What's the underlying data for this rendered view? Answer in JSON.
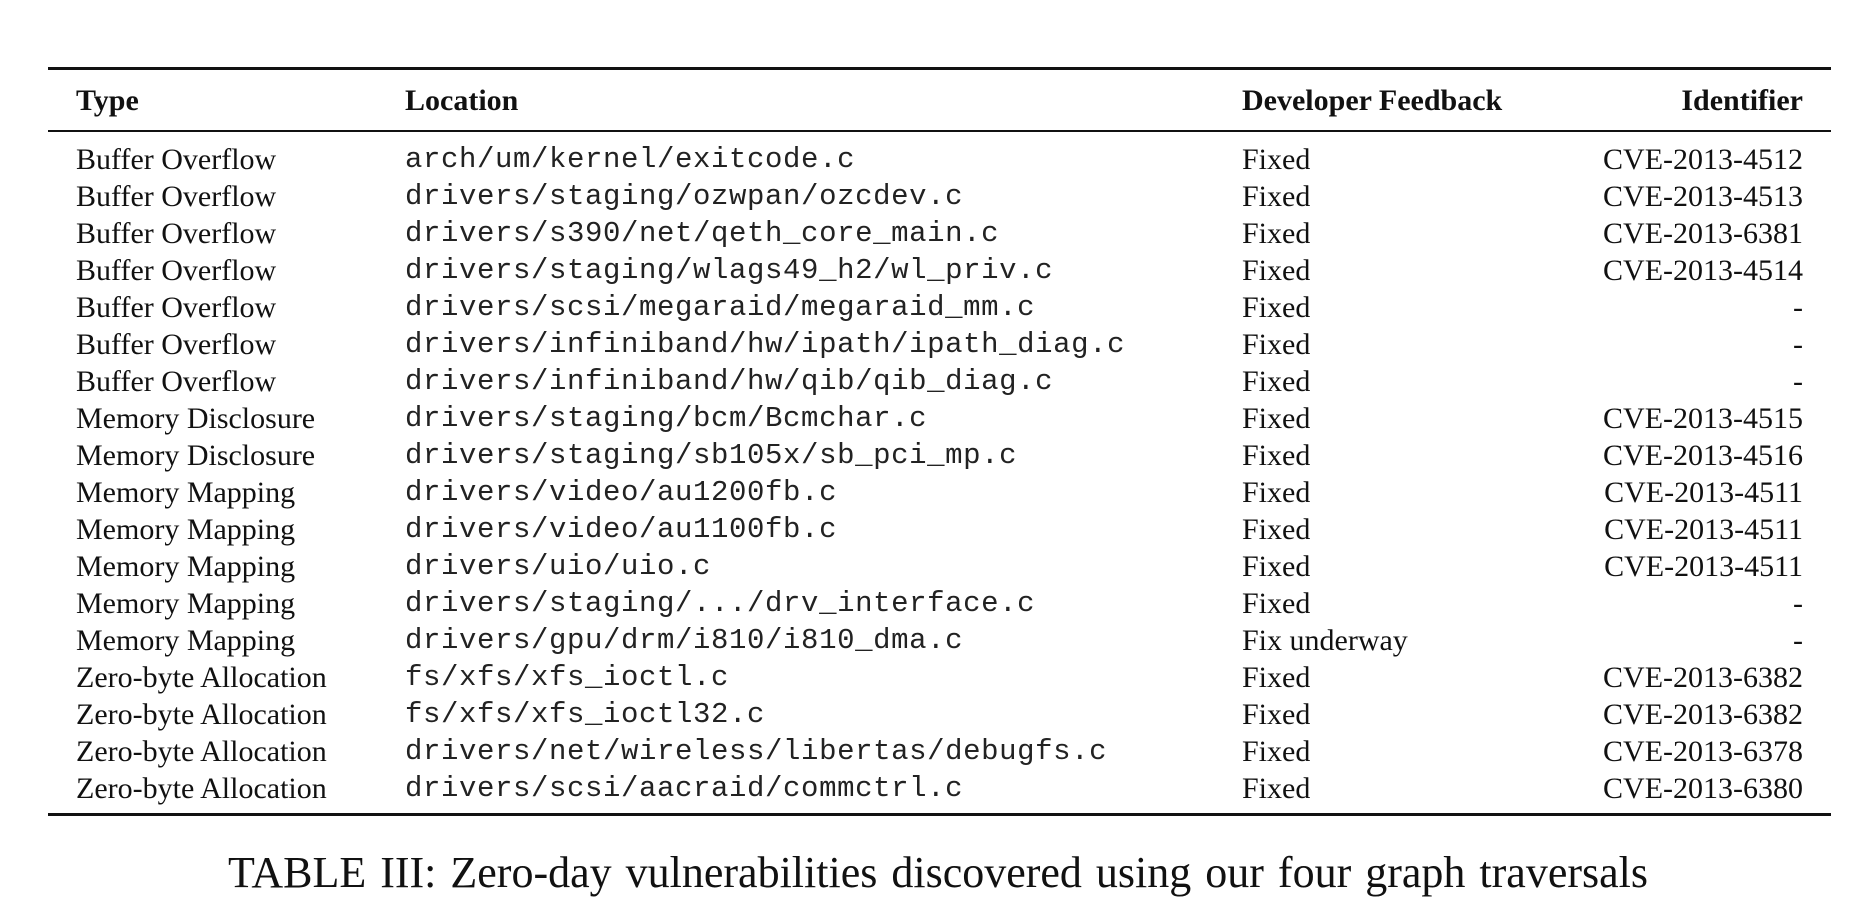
{
  "table": {
    "headers": {
      "type": "Type",
      "location": "Location",
      "feedback": "Developer Feedback",
      "identifier": "Identifier"
    },
    "rows": [
      {
        "type": "Buffer Overflow",
        "location": "arch/um/kernel/exitcode.c",
        "feedback": "Fixed",
        "identifier": "CVE-2013-4512"
      },
      {
        "type": "Buffer Overflow",
        "location": "drivers/staging/ozwpan/ozcdev.c",
        "feedback": "Fixed",
        "identifier": "CVE-2013-4513"
      },
      {
        "type": "Buffer Overflow",
        "location": "drivers/s390/net/qeth_core_main.c",
        "feedback": "Fixed",
        "identifier": "CVE-2013-6381"
      },
      {
        "type": "Buffer Overflow",
        "location": "drivers/staging/wlags49_h2/wl_priv.c",
        "feedback": "Fixed",
        "identifier": "CVE-2013-4514"
      },
      {
        "type": "Buffer Overflow",
        "location": "drivers/scsi/megaraid/megaraid_mm.c",
        "feedback": "Fixed",
        "identifier": "-"
      },
      {
        "type": "Buffer Overflow",
        "location": "drivers/infiniband/hw/ipath/ipath_diag.c",
        "feedback": "Fixed",
        "identifier": "-"
      },
      {
        "type": "Buffer Overflow",
        "location": "drivers/infiniband/hw/qib/qib_diag.c",
        "feedback": "Fixed",
        "identifier": "-"
      },
      {
        "type": "Memory Disclosure",
        "location": "drivers/staging/bcm/Bcmchar.c",
        "feedback": "Fixed",
        "identifier": "CVE-2013-4515"
      },
      {
        "type": "Memory Disclosure",
        "location": "drivers/staging/sb105x/sb_pci_mp.c",
        "feedback": "Fixed",
        "identifier": "CVE-2013-4516"
      },
      {
        "type": "Memory Mapping",
        "location": "drivers/video/au1200fb.c",
        "feedback": "Fixed",
        "identifier": "CVE-2013-4511"
      },
      {
        "type": "Memory Mapping",
        "location": "drivers/video/au1100fb.c",
        "feedback": "Fixed",
        "identifier": "CVE-2013-4511"
      },
      {
        "type": "Memory Mapping",
        "location": "drivers/uio/uio.c",
        "feedback": "Fixed",
        "identifier": "CVE-2013-4511"
      },
      {
        "type": "Memory Mapping",
        "location": "drivers/staging/.../drv_interface.c",
        "feedback": "Fixed",
        "identifier": "-"
      },
      {
        "type": "Memory Mapping",
        "location": "drivers/gpu/drm/i810/i810_dma.c",
        "feedback": "Fix underway",
        "identifier": "-"
      },
      {
        "type": "Zero-byte Allocation",
        "location": "fs/xfs/xfs_ioctl.c",
        "feedback": "Fixed",
        "identifier": "CVE-2013-6382"
      },
      {
        "type": "Zero-byte Allocation",
        "location": "fs/xfs/xfs_ioctl32.c",
        "feedback": "Fixed",
        "identifier": "CVE-2013-6382"
      },
      {
        "type": "Zero-byte Allocation",
        "location": "drivers/net/wireless/libertas/debugfs.c",
        "feedback": "Fixed",
        "identifier": "CVE-2013-6378"
      },
      {
        "type": "Zero-byte Allocation",
        "location": "drivers/scsi/aacraid/commctrl.c",
        "feedback": "Fixed",
        "identifier": "CVE-2013-6380"
      }
    ]
  },
  "caption": "TABLE III:  Zero-day vulnerabilities discovered using our four graph traversals"
}
